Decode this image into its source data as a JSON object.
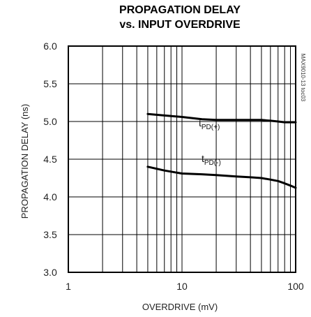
{
  "chart_data": {
    "type": "line",
    "title_line1": "PROPAGATION DELAY",
    "title_line2": "vs. INPUT OVERDRIVE",
    "xlabel": "OVERDRIVE (mV)",
    "ylabel": "PROPAGATION DELAY (ns)",
    "x_scale": "log",
    "xlim": [
      1,
      100
    ],
    "ylim": [
      3.0,
      6.0
    ],
    "x_ticks": [
      "1",
      "10",
      "100"
    ],
    "y_ticks": [
      "6.0",
      "5.5",
      "5.0",
      "4.5",
      "4.0",
      "3.5",
      "3.0"
    ],
    "grid": true,
    "code": "MAX9010-13 toc03",
    "series": [
      {
        "name": "tPD(+)",
        "label_main": "t",
        "label_sub": "PD(+)",
        "x": [
          5,
          7,
          10,
          15,
          20,
          30,
          40,
          50,
          60,
          70,
          80,
          90,
          100
        ],
        "y": [
          5.1,
          5.08,
          5.06,
          5.03,
          5.02,
          5.02,
          5.02,
          5.02,
          5.01,
          5.0,
          4.99,
          4.99,
          4.99
        ]
      },
      {
        "name": "tPD(-)",
        "label_main": "t",
        "label_sub": "PD(-)",
        "x": [
          5,
          7,
          10,
          15,
          20,
          30,
          40,
          50,
          60,
          70,
          80,
          90,
          100
        ],
        "y": [
          4.4,
          4.35,
          4.31,
          4.3,
          4.29,
          4.27,
          4.26,
          4.25,
          4.23,
          4.21,
          4.18,
          4.15,
          4.12
        ]
      }
    ]
  }
}
